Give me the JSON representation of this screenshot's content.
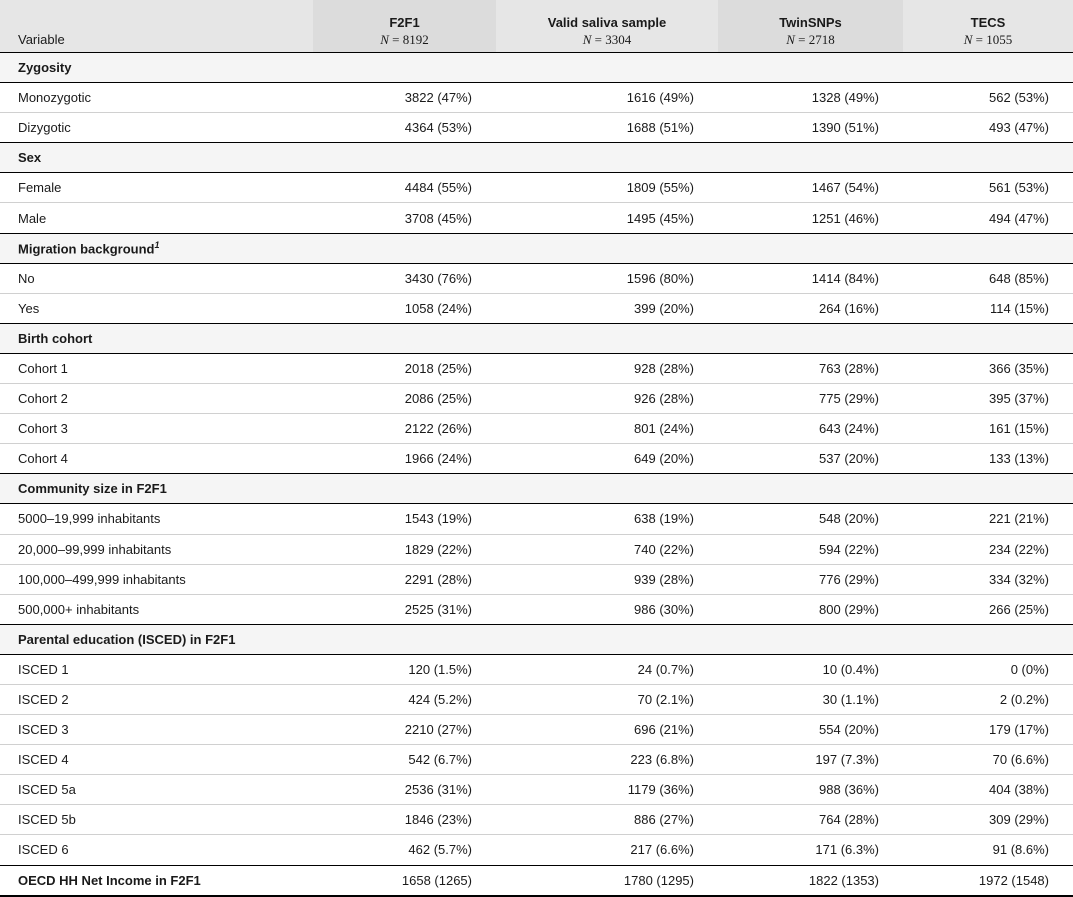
{
  "header": {
    "variable": "Variable",
    "columns": [
      {
        "name": "F2F1",
        "n": "8192"
      },
      {
        "name": "Valid saliva sample",
        "n": "3304"
      },
      {
        "name": "TwinSNPs",
        "n": "2718"
      },
      {
        "name": "TECS",
        "n": "1055"
      }
    ],
    "n_label": "N"
  },
  "groups": {
    "zygosity": {
      "label": "Zygosity",
      "rows": [
        {
          "label": "Monozygotic",
          "values": [
            "3822 (47%)",
            "1616 (49%)",
            "1328 (49%)",
            "562 (53%)"
          ]
        },
        {
          "label": "Dizygotic",
          "values": [
            "4364 (53%)",
            "1688 (51%)",
            "1390 (51%)",
            "493 (47%)"
          ]
        }
      ]
    },
    "sex": {
      "label": "Sex",
      "rows": [
        {
          "label": "Female",
          "values": [
            "4484 (55%)",
            "1809 (55%)",
            "1467 (54%)",
            "561 (53%)"
          ]
        },
        {
          "label": "Male",
          "values": [
            "3708 (45%)",
            "1495 (45%)",
            "1251 (46%)",
            "494 (47%)"
          ]
        }
      ]
    },
    "migration": {
      "label": "Migration background",
      "footnote": "1",
      "rows": [
        {
          "label": "No",
          "values": [
            "3430 (76%)",
            "1596 (80%)",
            "1414 (84%)",
            "648 (85%)"
          ]
        },
        {
          "label": "Yes",
          "values": [
            "1058 (24%)",
            "399 (20%)",
            "264 (16%)",
            "114 (15%)"
          ]
        }
      ]
    },
    "cohort": {
      "label": "Birth cohort",
      "rows": [
        {
          "label": "Cohort 1",
          "values": [
            "2018 (25%)",
            "928 (28%)",
            "763 (28%)",
            "366 (35%)"
          ]
        },
        {
          "label": "Cohort 2",
          "values": [
            "2086 (25%)",
            "926 (28%)",
            "775 (29%)",
            "395 (37%)"
          ]
        },
        {
          "label": "Cohort 3",
          "values": [
            "2122 (26%)",
            "801 (24%)",
            "643 (24%)",
            "161 (15%)"
          ]
        },
        {
          "label": "Cohort 4",
          "values": [
            "1966 (24%)",
            "649 (20%)",
            "537 (20%)",
            "133 (13%)"
          ]
        }
      ]
    },
    "community": {
      "label": "Community size in F2F1",
      "rows": [
        {
          "label": "5000–19,999 inhabitants",
          "values": [
            "1543 (19%)",
            "638 (19%)",
            "548 (20%)",
            "221 (21%)"
          ]
        },
        {
          "label": "20,000–99,999 inhabitants",
          "values": [
            "1829 (22%)",
            "740 (22%)",
            "594 (22%)",
            "234 (22%)"
          ]
        },
        {
          "label": "100,000–499,999 inhabitants",
          "values": [
            "2291 (28%)",
            "939 (28%)",
            "776 (29%)",
            "334 (32%)"
          ]
        },
        {
          "label": "500,000+ inhabitants",
          "values": [
            "2525 (31%)",
            "986 (30%)",
            "800 (29%)",
            "266 (25%)"
          ]
        }
      ]
    },
    "education": {
      "label": "Parental education (ISCED) in F2F1",
      "rows": [
        {
          "label": "ISCED 1",
          "values": [
            "120 (1.5%)",
            "24 (0.7%)",
            "10 (0.4%)",
            "0 (0%)"
          ]
        },
        {
          "label": "ISCED 2",
          "values": [
            "424 (5.2%)",
            "70 (2.1%)",
            "30 (1.1%)",
            "2 (0.2%)"
          ]
        },
        {
          "label": "ISCED 3",
          "values": [
            "2210 (27%)",
            "696 (21%)",
            "554 (20%)",
            "179 (17%)"
          ]
        },
        {
          "label": "ISCED 4",
          "values": [
            "542 (6.7%)",
            "223 (6.8%)",
            "197 (7.3%)",
            "70 (6.6%)"
          ]
        },
        {
          "label": "ISCED 5a",
          "values": [
            "2536 (31%)",
            "1179 (36%)",
            "988 (36%)",
            "404 (38%)"
          ]
        },
        {
          "label": "ISCED 5b",
          "values": [
            "1846 (23%)",
            "886 (27%)",
            "764 (28%)",
            "309 (29%)"
          ]
        },
        {
          "label": "ISCED 6",
          "values": [
            "462 (5.7%)",
            "217 (6.6%)",
            "171 (6.3%)",
            "91 (8.6%)"
          ]
        }
      ]
    }
  },
  "income": {
    "label": "OECD HH Net Income in F2F1",
    "values": [
      "1658 (1265)",
      "1780 (1295)",
      "1822 (1353)",
      "1972 (1548)"
    ]
  }
}
